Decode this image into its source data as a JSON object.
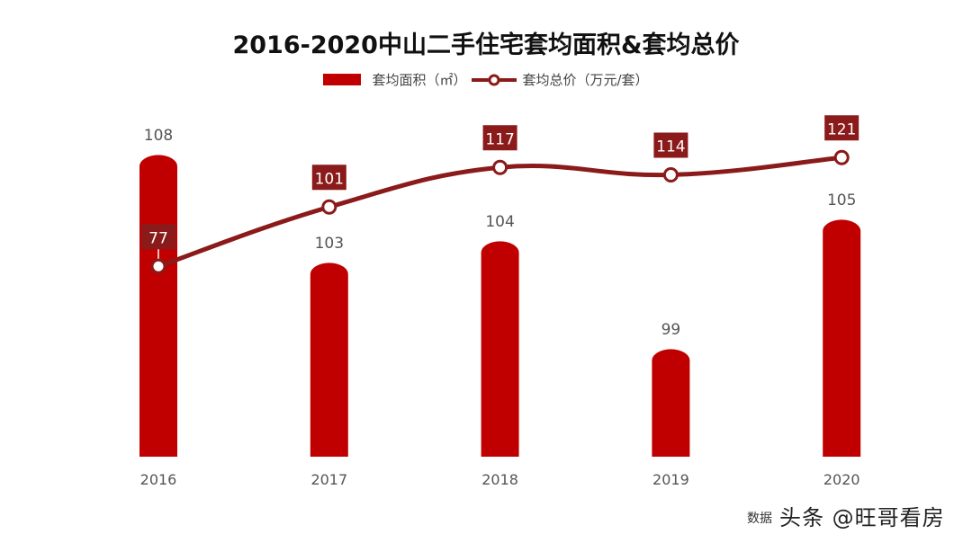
{
  "chart_data": {
    "type": "bar+line",
    "title": "2016-2020中山二手住宅套均面积&套均总价",
    "categories": [
      "2016",
      "2017",
      "2018",
      "2019",
      "2020"
    ],
    "series": [
      {
        "name": "套均面积（㎡）",
        "type": "bar",
        "values": [
          108,
          103,
          104,
          99,
          105
        ],
        "color": "#c00000"
      },
      {
        "name": "套均总价（万元/套）",
        "type": "line",
        "values": [
          77,
          101,
          117,
          114,
          121
        ],
        "color": "#8b1a1a"
      }
    ],
    "legend": "top",
    "grid": false
  },
  "source": "数据",
  "watermark": "头条 @旺哥看房"
}
